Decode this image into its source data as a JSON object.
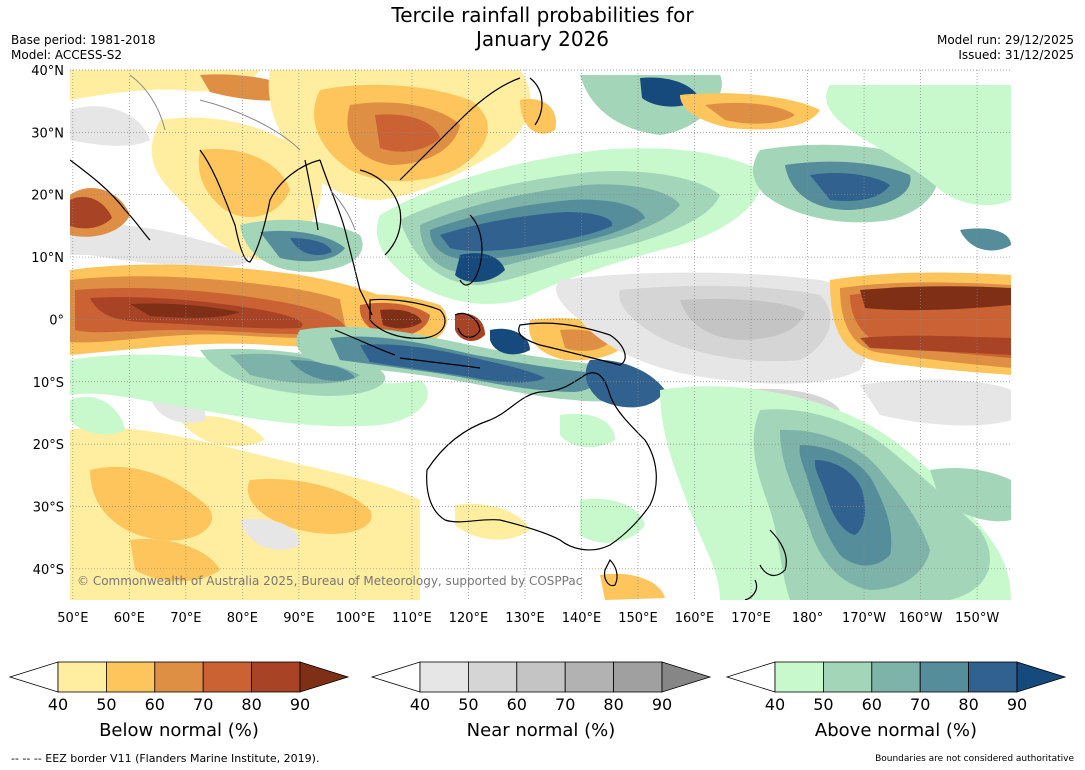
{
  "header": {
    "title_line1": "Tercile rainfall probabilities for",
    "title_line2": "January 2026",
    "base_period": "Base period: 1981-2018",
    "model": "Model: ACCESS-S2",
    "model_run": "Model run: 29/12/2025",
    "issued": "Issued: 31/12/2025"
  },
  "map": {
    "lat_labels": [
      "40°N",
      "30°N",
      "20°N",
      "10°N",
      "0°",
      "10°S",
      "20°S",
      "30°S",
      "40°S"
    ],
    "lon_labels": [
      "50°E",
      "60°E",
      "70°E",
      "80°E",
      "90°E",
      "100°E",
      "110°E",
      "120°E",
      "130°E",
      "140°E",
      "150°E",
      "160°E",
      "170°E",
      "180°",
      "170°W",
      "160°W",
      "150°W"
    ],
    "lat_values": [
      40,
      30,
      20,
      10,
      0,
      -10,
      -20,
      -30,
      -40
    ],
    "lon_values": [
      50,
      60,
      70,
      80,
      90,
      100,
      110,
      120,
      130,
      140,
      150,
      160,
      170,
      180,
      190,
      200,
      210
    ],
    "lat_range": [
      -45,
      40
    ],
    "lon_range": [
      49.5,
      216
    ],
    "copyright": "© Commonwealth of Australia 2025, Bureau of Meteorology, supported by COSPPac"
  },
  "legends": [
    {
      "title": "Below normal (%)",
      "ticks": [
        "40",
        "50",
        "60",
        "70",
        "80",
        "90"
      ],
      "colors": [
        "#ffeda0",
        "#fec55d",
        "#df8f44",
        "#cb6233",
        "#a84425",
        "#7e2f16"
      ]
    },
    {
      "title": "Near normal (%)",
      "ticks": [
        "40",
        "50",
        "60",
        "70",
        "80",
        "90"
      ],
      "colors": [
        "#e6e6e6",
        "#d5d5d5",
        "#c4c4c4",
        "#b2b2b2",
        "#a0a0a0",
        "#868686"
      ]
    },
    {
      "title": "Above normal (%)",
      "ticks": [
        "40",
        "50",
        "60",
        "70",
        "80",
        "90"
      ],
      "colors": [
        "#c7f9cc",
        "#a3d6b9",
        "#7db3a8",
        "#558d9a",
        "#31628f",
        "#174a7c"
      ]
    }
  ],
  "footer": {
    "eez": "--  --  -- EEZ border V11 (Flanders Marine Institute, 2019).",
    "note": "Boundaries are not considered authoritative"
  },
  "icons": [
    "eez-border-dash-icon"
  ]
}
